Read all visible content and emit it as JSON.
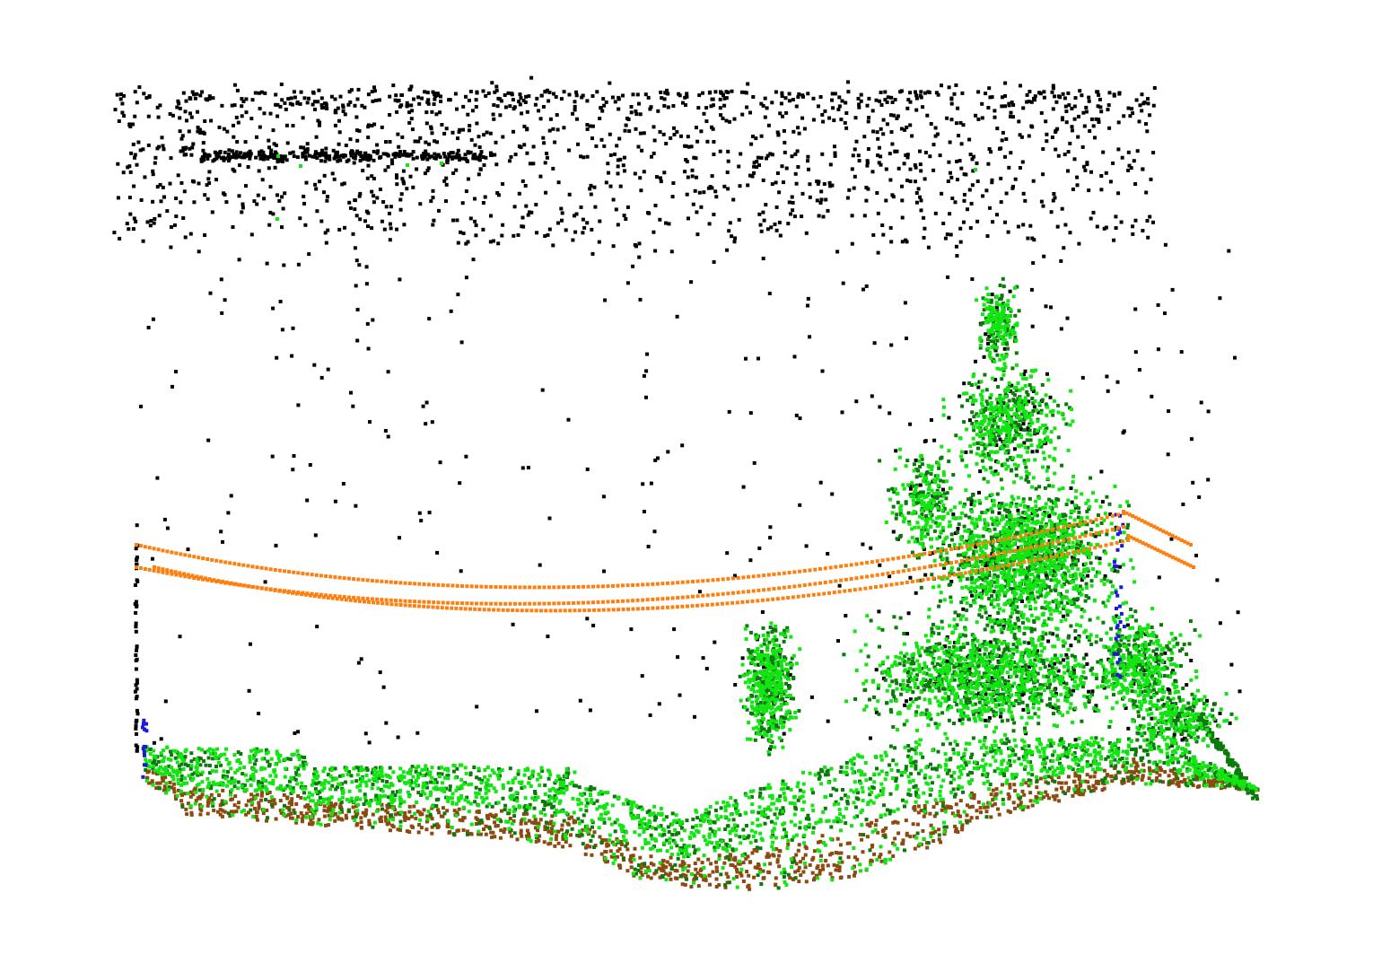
{
  "view": {
    "background": "#ffffff",
    "render_style": "square point markers"
  },
  "classes": [
    {
      "name": "unclassified",
      "color": "#000000"
    },
    {
      "name": "vegetation-bright",
      "color": "#11e611"
    },
    {
      "name": "vegetation-dark",
      "color": "#0a7a0a"
    },
    {
      "name": "ground",
      "color": "#8b4a10"
    },
    {
      "name": "power-line",
      "color": "#ff7f0e"
    },
    {
      "name": "pole",
      "color": "#1a1ad6"
    }
  ]
}
